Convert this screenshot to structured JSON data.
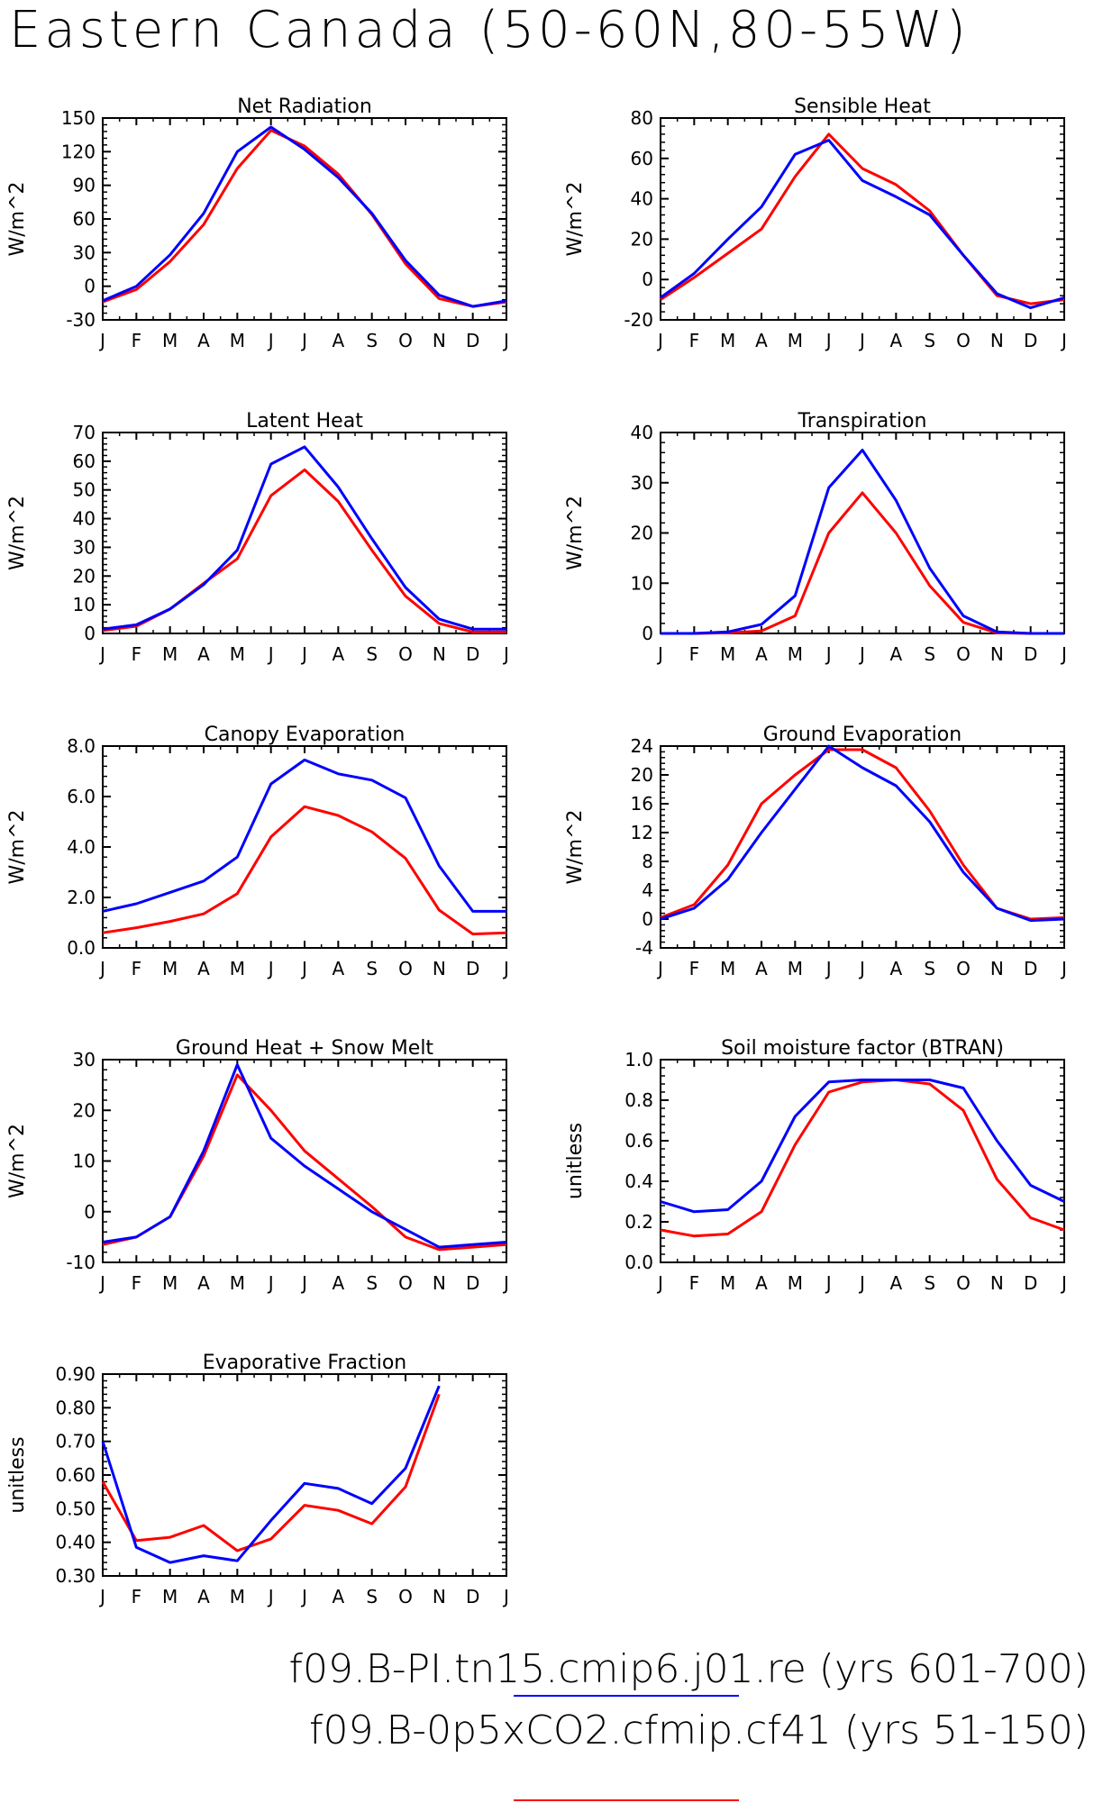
{
  "figure": {
    "title": "Eastern Canada (50-60N,80-55W)"
  },
  "colors": {
    "series1": "#0000ff",
    "series2": "#ff0000",
    "axis": "#000000"
  },
  "legend": [
    {
      "label": "f09.B-PI.tn15.cmip6.j01.re (yrs 601-700)",
      "color": "#0000ff"
    },
    {
      "label": "f09.B-0p5xCO2.cfmip.cf41 (yrs 51-150)",
      "color": "#ff0000"
    }
  ],
  "chart_data": [
    {
      "type": "line",
      "title": "Net Radiation",
      "ylabel": "W/m^2",
      "categories": [
        "J",
        "F",
        "M",
        "A",
        "M",
        "J",
        "J",
        "A",
        "S",
        "O",
        "N",
        "D",
        "J"
      ],
      "ylim": [
        -30,
        150
      ],
      "yticks": [
        "150",
        "120",
        "90",
        "60",
        "30",
        "0",
        "-30"
      ],
      "ytick_values": [
        150,
        120,
        90,
        60,
        30,
        0,
        -30
      ],
      "series": [
        {
          "values": [
            -13,
            0,
            28,
            65,
            120,
            142,
            122,
            97,
            65,
            23,
            -8,
            -18,
            -13
          ]
        },
        {
          "values": [
            -14,
            -3,
            22,
            55,
            105,
            139,
            125,
            100,
            64,
            20,
            -11,
            -18,
            -14
          ]
        }
      ]
    },
    {
      "type": "line",
      "title": "Sensible Heat",
      "ylabel": "W/m^2",
      "categories": [
        "J",
        "F",
        "M",
        "A",
        "M",
        "J",
        "J",
        "A",
        "S",
        "O",
        "N",
        "D",
        "J"
      ],
      "ylim": [
        -20,
        80
      ],
      "yticks": [
        "80",
        "60",
        "40",
        "20",
        "0",
        "-20"
      ],
      "ytick_values": [
        80,
        60,
        40,
        20,
        0,
        -20
      ],
      "series": [
        {
          "values": [
            -9,
            3,
            20,
            36,
            62,
            69,
            49,
            41,
            32,
            12,
            -7,
            -14,
            -9
          ]
        },
        {
          "values": [
            -10,
            1,
            13,
            25,
            51,
            72,
            55,
            47,
            34,
            12,
            -8,
            -12,
            -10
          ]
        }
      ]
    },
    {
      "type": "line",
      "title": "Latent Heat",
      "ylabel": "W/m^2",
      "categories": [
        "J",
        "F",
        "M",
        "A",
        "M",
        "J",
        "J",
        "A",
        "S",
        "O",
        "N",
        "D",
        "J"
      ],
      "ylim": [
        0,
        70
      ],
      "yticks": [
        "70",
        "60",
        "50",
        "40",
        "30",
        "20",
        "10",
        "0"
      ],
      "ytick_values": [
        70,
        60,
        50,
        40,
        30,
        20,
        10,
        0
      ],
      "series": [
        {
          "values": [
            1.5,
            3,
            8.5,
            17,
            29,
            59,
            65,
            51,
            33,
            16,
            5,
            1.5,
            1.5
          ]
        },
        {
          "values": [
            1,
            2.5,
            8.5,
            17.5,
            26,
            48,
            57,
            46,
            29,
            13,
            3.5,
            0.5,
            0.5
          ]
        }
      ]
    },
    {
      "type": "line",
      "title": "Transpiration",
      "ylabel": "W/m^2",
      "categories": [
        "J",
        "F",
        "M",
        "A",
        "M",
        "J",
        "J",
        "A",
        "S",
        "O",
        "N",
        "D",
        "J"
      ],
      "ylim": [
        0,
        40
      ],
      "yticks": [
        "40",
        "30",
        "20",
        "10",
        "0"
      ],
      "ytick_values": [
        40,
        30,
        20,
        10,
        0
      ],
      "series": [
        {
          "values": [
            0,
            0,
            0.3,
            1.8,
            7.5,
            29,
            36.5,
            26.5,
            13,
            3.5,
            0.3,
            0,
            0
          ]
        },
        {
          "values": [
            0,
            0,
            0.1,
            0.5,
            3.5,
            20,
            28,
            20,
            9.5,
            2.2,
            0.1,
            0,
            0
          ]
        }
      ]
    },
    {
      "type": "line",
      "title": "Canopy Evaporation",
      "ylabel": "W/m^2",
      "categories": [
        "J",
        "F",
        "M",
        "A",
        "M",
        "J",
        "J",
        "A",
        "S",
        "O",
        "N",
        "D",
        "J"
      ],
      "ylim": [
        0,
        8
      ],
      "yticks": [
        "8.0",
        "6.0",
        "4.0",
        "2.0",
        "0.0"
      ],
      "ytick_values": [
        8,
        6,
        4,
        2,
        0
      ],
      "series": [
        {
          "values": [
            1.45,
            1.75,
            2.2,
            2.65,
            3.6,
            6.5,
            7.45,
            6.9,
            6.65,
            5.95,
            3.25,
            1.45,
            1.45
          ]
        },
        {
          "values": [
            0.6,
            0.8,
            1.05,
            1.35,
            2.15,
            4.4,
            5.6,
            5.25,
            4.6,
            3.55,
            1.5,
            0.55,
            0.6
          ]
        }
      ]
    },
    {
      "type": "line",
      "title": "Ground Evaporation",
      "ylabel": "W/m^2",
      "categories": [
        "J",
        "F",
        "M",
        "A",
        "M",
        "J",
        "J",
        "A",
        "S",
        "O",
        "N",
        "D",
        "J"
      ],
      "ylim": [
        -4,
        24
      ],
      "yticks": [
        "24",
        "20",
        "16",
        "12",
        "8",
        "4",
        "0",
        "-4"
      ],
      "ytick_values": [
        24,
        20,
        16,
        12,
        8,
        4,
        0,
        -4
      ],
      "series": [
        {
          "values": [
            0,
            1.5,
            5.5,
            12,
            18,
            24,
            21,
            18.5,
            13.5,
            6.5,
            1.5,
            -0.2,
            0
          ]
        },
        {
          "values": [
            0.2,
            2,
            7.5,
            16,
            20,
            23.5,
            23.5,
            21,
            15,
            7.5,
            1.5,
            0,
            0.2
          ]
        }
      ]
    },
    {
      "type": "line",
      "title": "Ground Heat + Snow Melt",
      "ylabel": "W/m^2",
      "categories": [
        "J",
        "F",
        "M",
        "A",
        "M",
        "J",
        "J",
        "A",
        "S",
        "O",
        "N",
        "D",
        "J"
      ],
      "ylim": [
        -10,
        30
      ],
      "yticks": [
        "30",
        "20",
        "10",
        "0",
        "-10"
      ],
      "ytick_values": [
        30,
        20,
        10,
        0,
        -10
      ],
      "series": [
        {
          "values": [
            -6,
            -5,
            -1,
            12,
            29,
            14.5,
            9,
            4.5,
            0,
            -3.5,
            -7,
            -6.5,
            -6
          ]
        },
        {
          "values": [
            -6.5,
            -5,
            -1,
            11,
            27,
            20,
            12,
            6.5,
            1,
            -5,
            -7.5,
            -7,
            -6.5
          ]
        }
      ]
    },
    {
      "type": "line",
      "title": "Soil moisture factor (BTRAN)",
      "ylabel": "unitless",
      "categories": [
        "J",
        "F",
        "M",
        "A",
        "M",
        "J",
        "J",
        "A",
        "S",
        "O",
        "N",
        "D",
        "J"
      ],
      "ylim": [
        0,
        1
      ],
      "yticks": [
        "1.0",
        "0.8",
        "0.6",
        "0.4",
        "0.2",
        "0.0"
      ],
      "ytick_values": [
        1,
        0.8,
        0.6,
        0.4,
        0.2,
        0
      ],
      "series": [
        {
          "values": [
            0.3,
            0.25,
            0.26,
            0.4,
            0.72,
            0.89,
            0.9,
            0.9,
            0.9,
            0.86,
            0.6,
            0.38,
            0.3
          ]
        },
        {
          "values": [
            0.16,
            0.13,
            0.14,
            0.25,
            0.58,
            0.84,
            0.89,
            0.9,
            0.88,
            0.75,
            0.41,
            0.22,
            0.16
          ]
        }
      ]
    },
    {
      "type": "line",
      "title": "Evaporative Fraction",
      "ylabel": "unitless",
      "categories": [
        "J",
        "F",
        "M",
        "A",
        "M",
        "J",
        "J",
        "A",
        "S",
        "O",
        "N",
        "D",
        "J"
      ],
      "ylim": [
        0.3,
        0.9
      ],
      "yticks": [
        "0.90",
        "0.80",
        "0.70",
        "0.60",
        "0.50",
        "0.40",
        "0.30"
      ],
      "ytick_values": [
        0.9,
        0.8,
        0.7,
        0.6,
        0.5,
        0.4,
        0.3
      ],
      "series": [
        {
          "values": [
            0.7,
            0.385,
            0.34,
            0.36,
            0.345,
            0.465,
            0.575,
            0.56,
            0.515,
            0.62,
            0.865,
            null,
            null
          ]
        },
        {
          "values": [
            0.58,
            0.405,
            0.415,
            0.45,
            0.375,
            0.41,
            0.51,
            0.495,
            0.455,
            0.565,
            0.84,
            null,
            null
          ]
        }
      ]
    }
  ]
}
